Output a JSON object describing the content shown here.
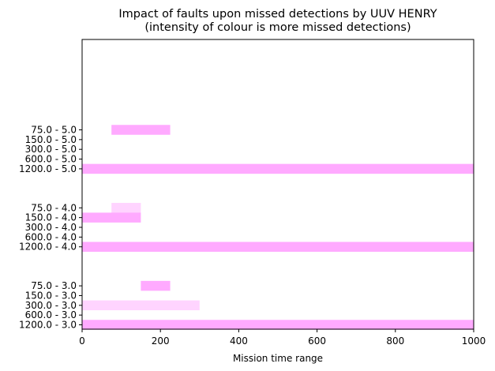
{
  "chart_data": {
    "type": "bar",
    "orientation": "horizontal",
    "title": "Impact of faults upon missed detections by UUV HENRY",
    "subtitle": "(intensity of colour is more missed detections)",
    "xlabel": "Mission time range",
    "ylabel": "",
    "xlim": [
      0,
      1000
    ],
    "x_ticks": [
      0,
      200,
      400,
      600,
      800,
      1000
    ],
    "grid": false,
    "legend": "none",
    "colors": {
      "strong": "#ffaaff",
      "light": "#ffd4ff",
      "axis": "#000000"
    },
    "groups": [
      {
        "categories": [
          "75.0 - 5.0",
          "150.0 - 5.0",
          "300.0 - 5.0",
          "600.0 - 5.0",
          "1200.0 - 5.0"
        ],
        "bars": [
          {
            "category": "75.0 - 5.0",
            "start": 75,
            "end": 225,
            "intensity": "strong"
          },
          {
            "category": "1200.0 - 5.0",
            "start": 0,
            "end": 1000,
            "intensity": "strong"
          }
        ]
      },
      {
        "categories": [
          "75.0 - 4.0",
          "150.0 - 4.0",
          "300.0 - 4.0",
          "600.0 - 4.0",
          "1200.0 - 4.0"
        ],
        "bars": [
          {
            "category": "75.0 - 4.0",
            "start": 75,
            "end": 150,
            "intensity": "light"
          },
          {
            "category": "150.0 - 4.0",
            "start": 0,
            "end": 150,
            "intensity": "strong"
          },
          {
            "category": "1200.0 - 4.0",
            "start": 0,
            "end": 1000,
            "intensity": "strong"
          }
        ]
      },
      {
        "categories": [
          "75.0 - 3.0",
          "150.0 - 3.0",
          "300.0 - 3.0",
          "600.0 - 3.0",
          "1200.0 - 3.0"
        ],
        "bars": [
          {
            "category": "75.0 - 3.0",
            "start": 150,
            "end": 225,
            "intensity": "strong"
          },
          {
            "category": "300.0 - 3.0",
            "start": 0,
            "end": 300,
            "intensity": "light"
          },
          {
            "category": "1200.0 - 3.0",
            "start": 0,
            "end": 1000,
            "intensity": "strong"
          }
        ]
      }
    ]
  }
}
